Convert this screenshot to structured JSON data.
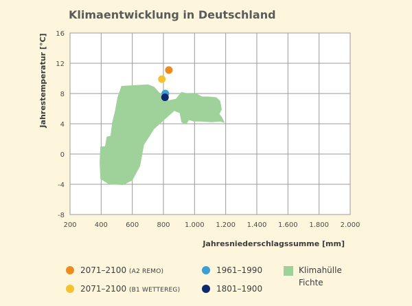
{
  "chart_data": {
    "type": "scatter",
    "title": "Klimaentwicklung in Deutschland",
    "xlabel": "Jahresniederschlagssumme [mm]",
    "ylabel": "Jahrestemperatur [°C]",
    "xlim": [
      200,
      2000
    ],
    "ylim": [
      -8,
      16
    ],
    "x_ticks": [
      "200",
      "400",
      "600",
      "800",
      "1.000",
      "1.200",
      "1.400",
      "1.600",
      "1.800",
      "2.000"
    ],
    "x_tick_values": [
      200,
      400,
      600,
      800,
      1000,
      1200,
      1400,
      1600,
      1800,
      2000
    ],
    "y_ticks": [
      "-8",
      "-4",
      "0",
      "4",
      "8",
      "12",
      "16"
    ],
    "y_tick_values": [
      -8,
      -4,
      0,
      4,
      8,
      12,
      16
    ],
    "grid": true,
    "series": [
      {
        "name": "2071–2100",
        "sub": "(A2 REMO)",
        "x": 835,
        "y": 11.1,
        "color": "#ef8a1e"
      },
      {
        "name": "2071–2100",
        "sub": "(B1 WETTEREG)",
        "x": 790,
        "y": 9.9,
        "color": "#f6c12f"
      },
      {
        "name": "1961–1990",
        "x": 812,
        "y": 8.0,
        "color": "#3b9fd4"
      },
      {
        "name": "1801–1900",
        "x": 810,
        "y": 7.5,
        "color": "#0d2a6e"
      }
    ],
    "area": {
      "name": "Klimahülle Fichte",
      "color": "#9fd19b",
      "points": [
        [
          530,
          9.0
        ],
        [
          700,
          9.2
        ],
        [
          740,
          8.9
        ],
        [
          775,
          8.1
        ],
        [
          835,
          7.1
        ],
        [
          880,
          7.3
        ],
        [
          915,
          8.2
        ],
        [
          960,
          8.0
        ],
        [
          1010,
          8.0
        ],
        [
          1050,
          7.6
        ],
        [
          1090,
          7.6
        ],
        [
          1140,
          7.5
        ],
        [
          1165,
          7.0
        ],
        [
          1175,
          5.9
        ],
        [
          1160,
          5.3
        ],
        [
          1175,
          4.9
        ],
        [
          1195,
          4.1
        ],
        [
          1165,
          4.3
        ],
        [
          1110,
          4.2
        ],
        [
          1040,
          4.3
        ],
        [
          995,
          4.3
        ],
        [
          965,
          4.5
        ],
        [
          945,
          3.9
        ],
        [
          915,
          4.2
        ],
        [
          905,
          5.4
        ],
        [
          870,
          5.7
        ],
        [
          810,
          4.6
        ],
        [
          740,
          3.3
        ],
        [
          675,
          1.2
        ],
        [
          650,
          -1.6
        ],
        [
          600,
          -3.5
        ],
        [
          540,
          -4.1
        ],
        [
          450,
          -4.0
        ],
        [
          395,
          -3.3
        ],
        [
          390,
          -1.1
        ],
        [
          395,
          1.0
        ],
        [
          425,
          1.0
        ],
        [
          435,
          2.3
        ],
        [
          460,
          2.4
        ],
        [
          470,
          4.1
        ],
        [
          490,
          5.8
        ],
        [
          505,
          7.5
        ]
      ]
    }
  }
}
